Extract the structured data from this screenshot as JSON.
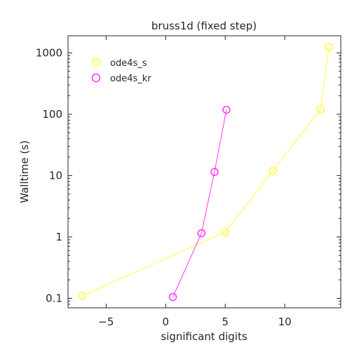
{
  "chart_data": {
    "type": "line",
    "title": "bruss1d (fixed step)",
    "xlabel": "significant digits",
    "ylabel": "Walltime (s)",
    "xlim": [
      -8.2,
      14.7
    ],
    "ylim": [
      0.07,
      1900
    ],
    "yscale": "log",
    "grid": false,
    "legend_position": "top-left",
    "x_ticks": [
      -5,
      0,
      5,
      10
    ],
    "x_tick_labels": [
      "−5",
      "0",
      "5",
      "10"
    ],
    "y_ticks": [
      0.1,
      1,
      10,
      100,
      1000
    ],
    "y_tick_labels": [
      "0.1",
      "1",
      "10",
      "100",
      "1000"
    ],
    "series": [
      {
        "name": "ode4s_s",
        "color": "#ffff33",
        "x": [
          -7.0,
          5.0,
          9.0,
          13.0,
          13.7
        ],
        "y": [
          0.11,
          1.2,
          12,
          120,
          1240
        ]
      },
      {
        "name": "ode4s_kr",
        "color": "#ff33ff",
        "x": [
          0.6,
          3.0,
          4.1,
          5.1
        ],
        "y": [
          0.105,
          1.15,
          11.5,
          118
        ]
      }
    ]
  }
}
